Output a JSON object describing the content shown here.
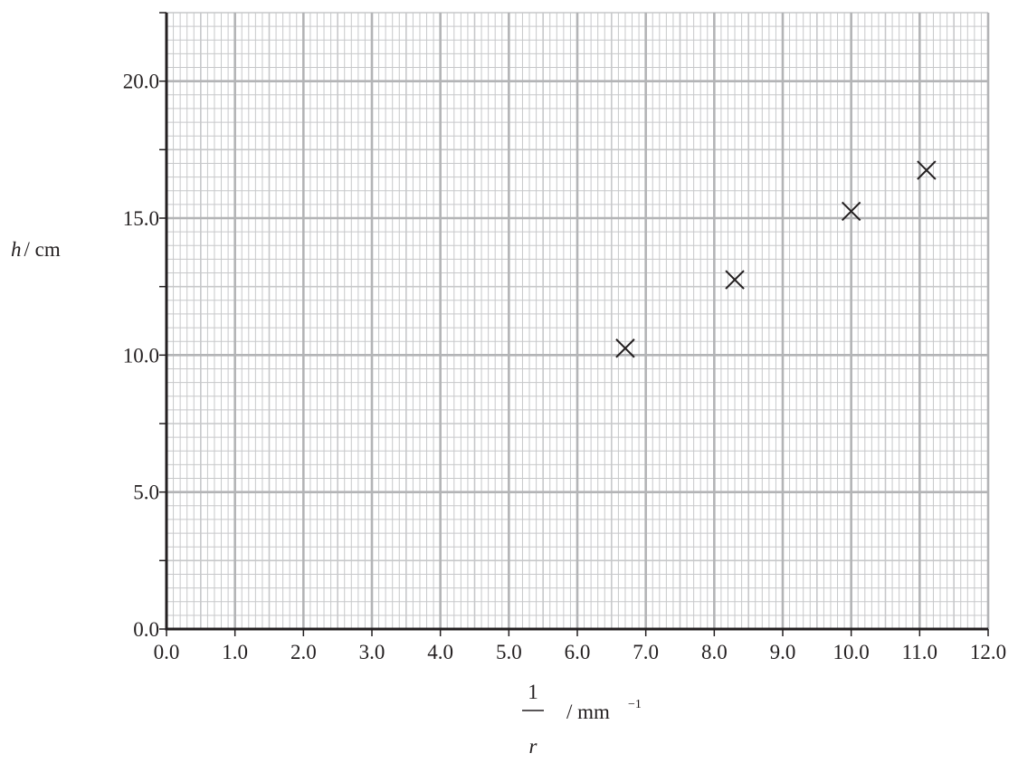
{
  "chart_data": {
    "type": "scatter",
    "xlabel": {
      "numerator": "1",
      "denominator": "r",
      "unit_prefix": "/ mm",
      "unit_exponent": "−1"
    },
    "ylabel": {
      "symbol": "h",
      "unit": "/ cm"
    },
    "xlim": [
      0,
      12
    ],
    "ylim": [
      0,
      22.5
    ],
    "x_major_step": 1,
    "y_major_step": 5,
    "y_tick_step": 2.5,
    "minor_divisions": 10,
    "grid": true,
    "marker": "cross",
    "xticks": [
      "0.0",
      "1.0",
      "2.0",
      "3.0",
      "4.0",
      "5.0",
      "6.0",
      "7.0",
      "8.0",
      "9.0",
      "10.0",
      "11.0",
      "12.0"
    ],
    "yticks": [
      "0.0",
      "5.0",
      "10.0",
      "15.0",
      "20.0"
    ],
    "points": [
      {
        "x": 6.7,
        "y": 10.25
      },
      {
        "x": 8.3,
        "y": 12.75
      },
      {
        "x": 10.0,
        "y": 15.25
      },
      {
        "x": 11.1,
        "y": 16.75
      }
    ],
    "colors": {
      "minor_grid": "#c7c8ca",
      "major_grid": "#b3b4b6",
      "axis": "#231f20",
      "marker": "#231f20"
    }
  }
}
